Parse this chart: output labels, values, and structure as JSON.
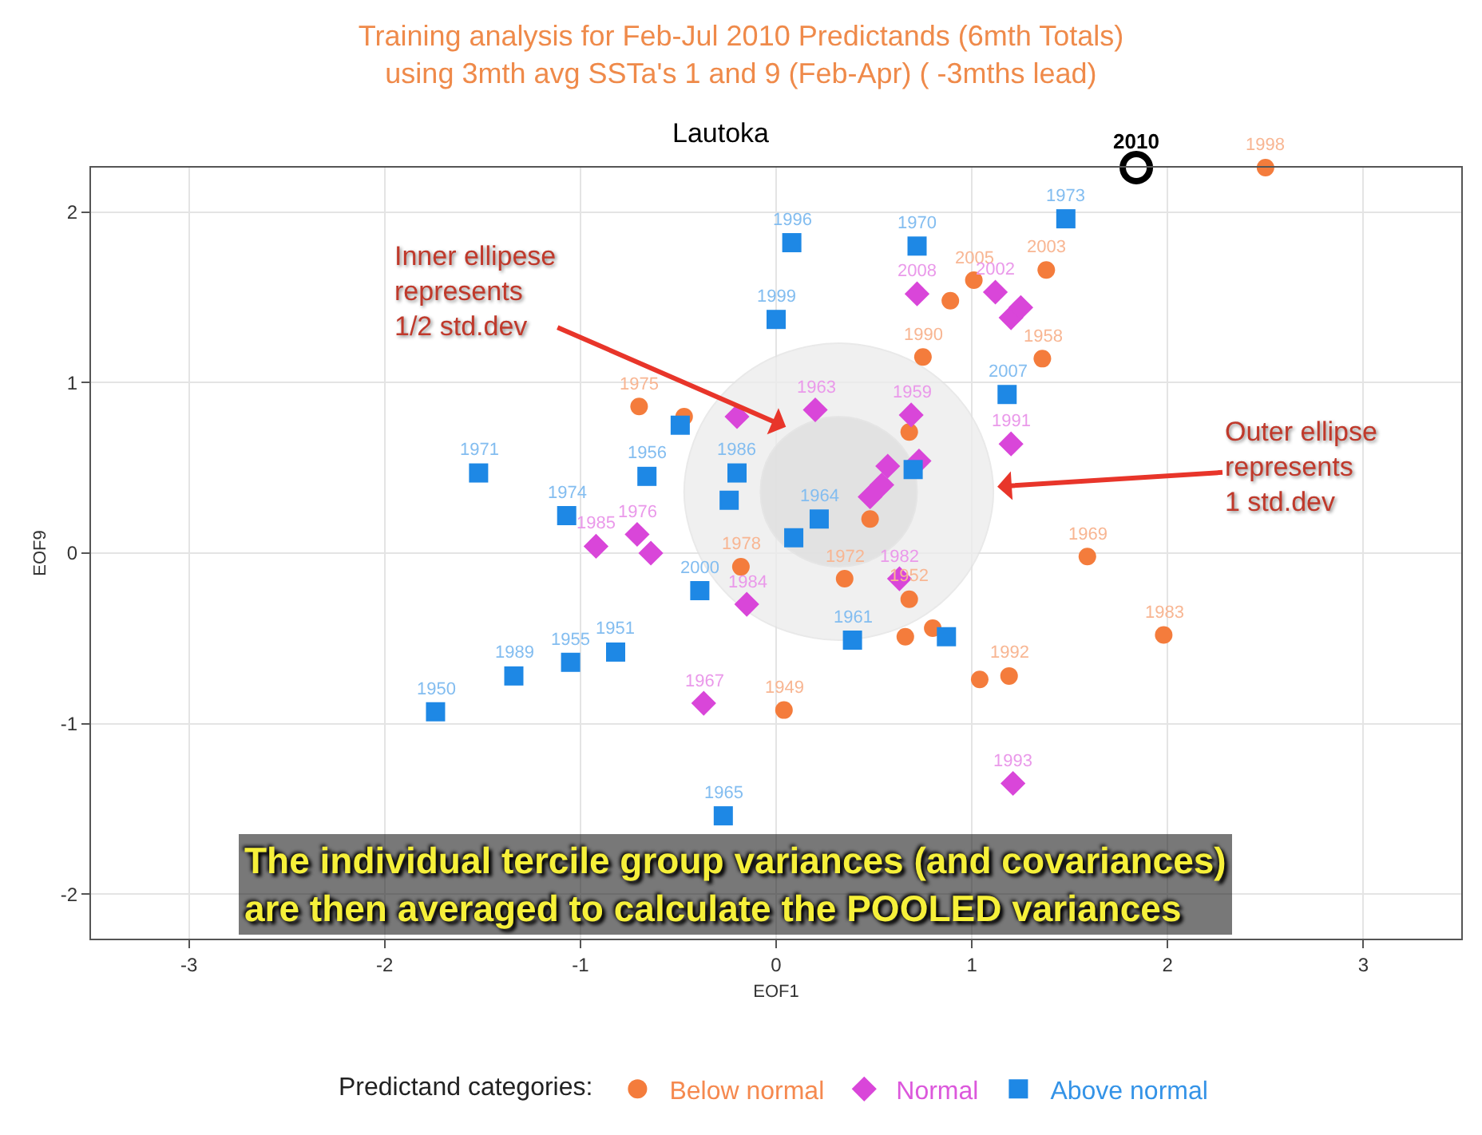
{
  "chart_data": {
    "type": "scatter",
    "title": "Training analysis for Feb-Jul 2010 Predictands (6mth Totals)\nusing 3mth avg SSTa's 1 and 9 (Feb-Apr) ( -3mths lead)",
    "subtitle": "Lautoka",
    "xlabel": "EOF1",
    "ylabel": "EOF9",
    "legend_title": "Predictand categories:",
    "xlim": [
      -3.5,
      3.5
    ],
    "ylim": [
      -2.26,
      2.26
    ],
    "xticks": [
      -3,
      -2,
      -1,
      0,
      1,
      2,
      3
    ],
    "yticks": [
      -2,
      -1,
      0,
      1,
      2
    ],
    "grid": true,
    "legend": "bottom",
    "series": [
      {
        "type": "area",
        "color": "#ececec",
        "x": [
          1.11,
          1.0,
          0.72,
          0.32,
          -0.08,
          -0.36,
          -0.47,
          -0.36,
          -0.08,
          0.32,
          0.72,
          1.0,
          1.11
        ],
        "values": [
          0.36,
          0.8,
          1.11,
          1.23,
          1.11,
          0.8,
          0.36,
          -0.08,
          -0.39,
          -0.51,
          -0.39,
          -0.08,
          0.36
        ]
      },
      {
        "type": "area",
        "color": "#dedede",
        "x": [
          0.72,
          0.67,
          0.52,
          0.32,
          0.12,
          -0.03,
          -0.08,
          -0.03,
          0.12,
          0.32,
          0.52,
          0.67,
          0.72
        ],
        "values": [
          0.36,
          0.58,
          0.74,
          0.8,
          0.74,
          0.58,
          0.36,
          0.14,
          -0.02,
          -0.08,
          -0.02,
          0.14,
          0.36
        ]
      },
      {
        "name": "Below normal",
        "color": "#f47c3c",
        "marker": "circle",
        "x": [
          2.5,
          -0.7,
          -0.47,
          1.01,
          0.89,
          1.38,
          0.75,
          1.36,
          0.68,
          0.48,
          1.59,
          -0.18,
          0.35,
          0.68,
          0.66,
          0.8,
          1.04,
          1.19,
          1.98,
          0.04
        ],
        "values": [
          2.26,
          0.86,
          0.8,
          1.6,
          1.48,
          1.66,
          1.15,
          1.14,
          0.71,
          0.2,
          -0.02,
          -0.08,
          -0.15,
          -0.27,
          -0.49,
          -0.44,
          -0.74,
          -0.72,
          -0.48,
          -0.92
        ]
      },
      {
        "name": "Normal",
        "color": "#d946d9",
        "marker": "diamond",
        "x": [
          0.2,
          -0.2,
          0.72,
          1.12,
          1.2,
          1.25,
          0.69,
          1.2,
          0.73,
          0.57,
          0.48,
          0.54,
          -0.92,
          -0.71,
          -0.64,
          -0.15,
          0.63,
          -0.37,
          1.21
        ],
        "values": [
          0.84,
          0.8,
          1.52,
          1.53,
          1.38,
          1.44,
          0.81,
          0.64,
          0.54,
          0.51,
          0.33,
          0.4,
          0.04,
          0.11,
          0.0,
          -0.3,
          -0.15,
          -0.88,
          -1.35
        ]
      },
      {
        "name": "Above normal",
        "color": "#1e88e5",
        "marker": "square",
        "x": [
          0.08,
          0.0,
          0.72,
          1.48,
          1.18,
          -1.52,
          -0.66,
          -1.07,
          -0.49,
          -0.2,
          -0.24,
          0.22,
          0.09,
          0.7,
          -0.39,
          0.39,
          0.87,
          -0.82,
          -1.05,
          -1.34,
          -1.74,
          -0.27
        ],
        "values": [
          1.82,
          1.37,
          1.8,
          1.96,
          0.93,
          0.47,
          0.45,
          0.22,
          0.75,
          0.47,
          0.31,
          0.2,
          0.09,
          0.49,
          -0.22,
          -0.51,
          -0.49,
          -0.58,
          -0.64,
          -0.72,
          -0.93,
          -1.54
        ]
      },
      {
        "color": "#000000",
        "marker": "circle",
        "x": [
          1.84
        ],
        "values": [
          2.26
        ]
      }
    ],
    "annotations": [
      "The individual tercile group variances (and covariances)\nare then averaged to calculate the POOLED variances",
      {
        "text": "Inner ellipese\nrepresents\n1/2 std.dev",
        "x": 0.05,
        "y": 0.74
      },
      {
        "text": "Outer ellipse\nrepresents\n1 std.dev",
        "x": 1.13,
        "y": 0.39
      },
      {
        "text": "2010",
        "x": 1.84,
        "y": 2.26
      },
      {
        "text": "1998",
        "x": 2.5,
        "y": 2.26
      },
      {
        "text": "1975",
        "x": -0.7,
        "y": 0.86
      },
      {
        "text": "2005",
        "x": 1.01,
        "y": 1.6
      },
      {
        "text": "2003",
        "x": 1.38,
        "y": 1.66
      },
      {
        "text": "1990",
        "x": 0.75,
        "y": 1.15
      },
      {
        "text": "1958",
        "x": 1.36,
        "y": 1.14
      },
      {
        "text": "1969",
        "x": 1.59,
        "y": -0.02
      },
      {
        "text": "1978",
        "x": -0.18,
        "y": -0.08
      },
      {
        "text": "1972",
        "x": 0.35,
        "y": -0.15
      },
      {
        "text": "1952",
        "x": 0.68,
        "y": -0.27
      },
      {
        "text": "1992",
        "x": 1.19,
        "y": -0.72
      },
      {
        "text": "1983",
        "x": 1.98,
        "y": -0.48
      },
      {
        "text": "1949",
        "x": 0.04,
        "y": -0.92
      },
      {
        "text": "1963",
        "x": 0.2,
        "y": 0.84
      },
      {
        "text": "2008",
        "x": 0.72,
        "y": 1.52
      },
      {
        "text": "2002",
        "x": 1.12,
        "y": 1.53
      },
      {
        "text": "1959",
        "x": 0.69,
        "y": 0.81
      },
      {
        "text": "1991",
        "x": 1.2,
        "y": 0.64
      },
      {
        "text": "1976",
        "x": -0.71,
        "y": 0.11
      },
      {
        "text": "1985",
        "x": -0.92,
        "y": 0.04
      },
      {
        "text": "1984",
        "x": -0.15,
        "y": -0.3
      },
      {
        "text": "1982",
        "x": 0.63,
        "y": -0.15
      },
      {
        "text": "1967",
        "x": -0.37,
        "y": -0.88
      },
      {
        "text": "1993",
        "x": 1.21,
        "y": -1.35
      },
      {
        "text": "1996",
        "x": 0.08,
        "y": 1.82
      },
      {
        "text": "1999",
        "x": 0.0,
        "y": 1.37
      },
      {
        "text": "1970",
        "x": 0.72,
        "y": 1.8
      },
      {
        "text": "1973",
        "x": 1.48,
        "y": 1.96
      },
      {
        "text": "2007",
        "x": 1.18,
        "y": 0.93
      },
      {
        "text": "1971",
        "x": -1.52,
        "y": 0.47
      },
      {
        "text": "1956",
        "x": -0.66,
        "y": 0.45
      },
      {
        "text": "1974",
        "x": -1.07,
        "y": 0.22
      },
      {
        "text": "1986",
        "x": -0.2,
        "y": 0.47
      },
      {
        "text": "1964",
        "x": 0.22,
        "y": 0.2
      },
      {
        "text": "2000",
        "x": -0.39,
        "y": -0.22
      },
      {
        "text": "1961",
        "x": 0.39,
        "y": -0.51
      },
      {
        "text": "1951",
        "x": -0.82,
        "y": -0.58
      },
      {
        "text": "1955",
        "x": -1.05,
        "y": -0.64
      },
      {
        "text": "1989",
        "x": -1.34,
        "y": -0.72
      },
      {
        "text": "1950",
        "x": -1.74,
        "y": -0.93
      },
      {
        "text": "1965",
        "x": -0.27,
        "y": -1.54
      }
    ]
  }
}
